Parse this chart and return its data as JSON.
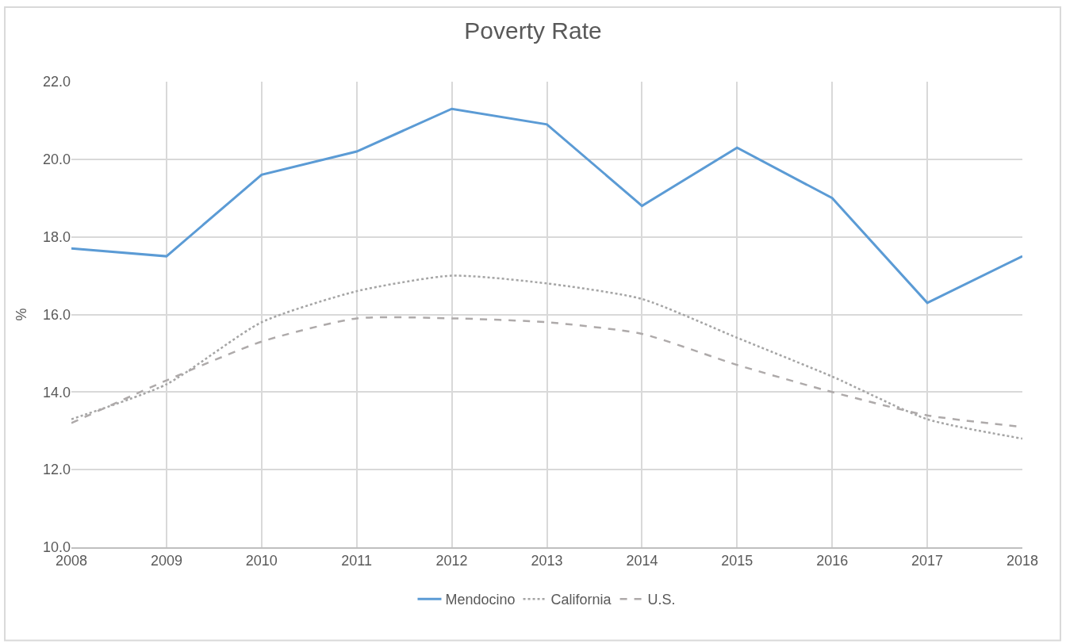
{
  "chart_data": {
    "type": "line",
    "title": "Poverty Rate",
    "ylabel": "%",
    "x": [
      2008,
      2009,
      2010,
      2011,
      2012,
      2013,
      2014,
      2015,
      2016,
      2017,
      2018
    ],
    "series": [
      {
        "name": "Mendocino",
        "color": "#5b9bd5",
        "line_style": "solid",
        "values": [
          17.7,
          17.5,
          19.6,
          20.2,
          21.3,
          20.9,
          18.8,
          20.3,
          19.0,
          16.3,
          17.5
        ]
      },
      {
        "name": "California",
        "color": "#a5a5a5",
        "line_style": "dotted",
        "values": [
          13.3,
          14.2,
          15.8,
          16.6,
          17.0,
          16.8,
          16.4,
          15.4,
          14.4,
          13.3,
          12.8
        ]
      },
      {
        "name": "U.S.",
        "color": "#aeaaaa",
        "line_style": "dashed",
        "values": [
          13.2,
          14.3,
          15.3,
          15.9,
          15.9,
          15.8,
          15.5,
          14.7,
          14.0,
          13.4,
          13.1
        ]
      }
    ],
    "xlim": [
      2008,
      2018
    ],
    "xticks": [
      2008,
      2009,
      2010,
      2011,
      2012,
      2013,
      2014,
      2015,
      2016,
      2017,
      2018
    ],
    "ylim": [
      10,
      22
    ],
    "yticks": [
      {
        "value": 10,
        "label": "10.0"
      },
      {
        "value": 12,
        "label": "12.0"
      },
      {
        "value": 14,
        "label": "14.0"
      },
      {
        "value": 16,
        "label": "16.0"
      },
      {
        "value": 18,
        "label": "18.0"
      },
      {
        "value": 20,
        "label": "20.0"
      },
      {
        "value": 22,
        "label": "22.0"
      }
    ],
    "grid": true,
    "legend": "bottom",
    "marker": "none"
  }
}
